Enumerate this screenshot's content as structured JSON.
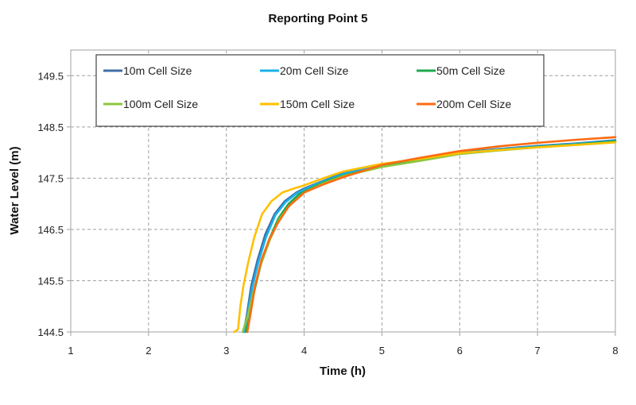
{
  "chart_data": {
    "type": "line",
    "title": "Reporting Point 5",
    "xlabel": "Time (h)",
    "ylabel": "Water Level (m)",
    "xlim": [
      1,
      8
    ],
    "ylim": [
      144.5,
      150.0
    ],
    "xticks": [
      "1",
      "2",
      "3",
      "4",
      "5",
      "6",
      "7",
      "8"
    ],
    "yticks": [
      "144.5",
      "145.5",
      "146.5",
      "147.5",
      "148.5",
      "149.5"
    ],
    "grid": true,
    "legend_position": "top",
    "series": [
      {
        "name": "10m Cell Size",
        "color": "#3f6ea8",
        "x": [
          3.22,
          3.26,
          3.32,
          3.4,
          3.5,
          3.62,
          3.75,
          3.9,
          4.0,
          4.25,
          4.5,
          5.0,
          5.5,
          6.0,
          6.5,
          7.0,
          7.5,
          8.0
        ],
        "y": [
          144.5,
          144.8,
          145.4,
          145.9,
          146.4,
          146.8,
          147.05,
          147.22,
          147.3,
          147.45,
          147.6,
          147.76,
          147.88,
          148.0,
          148.07,
          148.13,
          148.18,
          148.24
        ]
      },
      {
        "name": "20m Cell Size",
        "color": "#1ab0e8",
        "x": [
          3.23,
          3.27,
          3.33,
          3.41,
          3.51,
          3.63,
          3.76,
          3.9,
          4.0,
          4.25,
          4.5,
          5.0,
          5.5,
          6.0,
          6.5,
          7.0,
          7.5,
          8.0
        ],
        "y": [
          144.5,
          144.8,
          145.35,
          145.85,
          146.35,
          146.78,
          147.03,
          147.2,
          147.28,
          147.44,
          147.58,
          147.75,
          147.87,
          147.99,
          148.06,
          148.12,
          148.17,
          148.23
        ]
      },
      {
        "name": "50m Cell Size",
        "color": "#1fa84a",
        "x": [
          3.25,
          3.3,
          3.36,
          3.44,
          3.55,
          3.67,
          3.8,
          3.93,
          4.0,
          4.25,
          4.5,
          5.0,
          5.5,
          6.0,
          6.5,
          7.0,
          7.5,
          8.0
        ],
        "y": [
          144.5,
          144.8,
          145.3,
          145.8,
          146.3,
          146.72,
          147.0,
          147.18,
          147.24,
          147.42,
          147.55,
          147.73,
          147.85,
          147.98,
          148.05,
          148.11,
          148.16,
          148.22
        ]
      },
      {
        "name": "100m Cell Size",
        "color": "#8cc63f",
        "x": [
          3.21,
          3.28,
          3.35,
          3.44,
          3.56,
          3.68,
          3.82,
          3.95,
          4.0,
          4.25,
          4.5,
          5.0,
          5.5,
          6.0,
          6.5,
          7.0,
          7.5,
          8.0
        ],
        "y": [
          144.5,
          144.85,
          145.3,
          145.8,
          146.3,
          146.7,
          146.98,
          147.15,
          147.22,
          147.4,
          147.54,
          147.72,
          147.84,
          147.97,
          148.04,
          148.1,
          148.15,
          148.2
        ]
      },
      {
        "name": "150m Cell Size",
        "color": "#ffc000",
        "x": [
          3.1,
          3.15,
          3.18,
          3.22,
          3.28,
          3.36,
          3.46,
          3.58,
          3.72,
          3.87,
          4.0,
          4.25,
          4.5,
          5.0,
          5.5,
          6.0,
          6.5,
          7.0,
          7.5,
          8.0
        ],
        "y": [
          144.5,
          144.55,
          145.0,
          145.4,
          145.85,
          146.35,
          146.8,
          147.05,
          147.22,
          147.3,
          147.36,
          147.5,
          147.63,
          147.78,
          147.88,
          147.99,
          148.05,
          148.1,
          148.15,
          148.2
        ]
      },
      {
        "name": "200m Cell Size",
        "color": "#ff6a10",
        "x": [
          3.27,
          3.31,
          3.37,
          3.45,
          3.55,
          3.66,
          3.8,
          3.95,
          4.0,
          4.25,
          4.5,
          5.0,
          5.5,
          6.0,
          6.5,
          7.0,
          7.5,
          8.0
        ],
        "y": [
          144.5,
          144.85,
          145.4,
          145.9,
          146.3,
          146.62,
          146.95,
          147.15,
          147.22,
          147.38,
          147.52,
          147.76,
          147.9,
          148.03,
          148.12,
          148.19,
          148.25,
          148.3
        ]
      }
    ]
  }
}
